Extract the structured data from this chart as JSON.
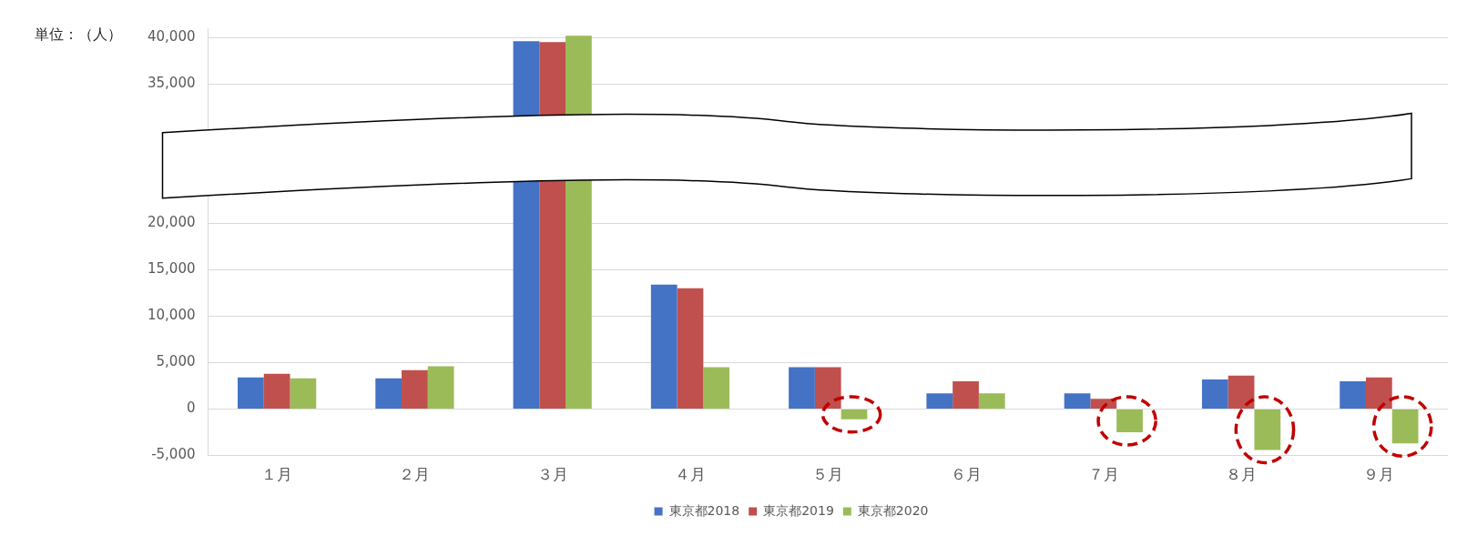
{
  "chart_data": {
    "type": "bar",
    "ylabel": "単位：（人）",
    "categories": [
      "１月",
      "２月",
      "３月",
      "４月",
      "５月",
      "６月",
      "７月",
      "８月",
      "９月"
    ],
    "series": [
      {
        "name": "東京都2018",
        "color": "#4472c4",
        "values": [
          3400,
          3300,
          39600,
          13400,
          4500,
          1700,
          1700,
          3200,
          3000
        ]
      },
      {
        "name": "東京都2019",
        "color": "#c0504d",
        "values": [
          3800,
          4200,
          39500,
          13000,
          4500,
          3000,
          1100,
          3600,
          3400
        ]
      },
      {
        "name": "東京都2020",
        "color": "#9bbb59",
        "values": [
          3300,
          4600,
          40200,
          4500,
          -1100,
          1700,
          -2500,
          -4400,
          -3700
        ]
      }
    ],
    "ylim": [
      -5000,
      41000
    ],
    "yticks": [
      {
        "value": -5000,
        "label": "-5,000"
      },
      0,
      {
        "value": 5000,
        "label": "5,000"
      },
      {
        "value": 10000,
        "label": "10,000"
      },
      {
        "value": 15000,
        "label": "15,000"
      },
      {
        "value": 20000,
        "label": "20,000"
      },
      {
        "value": 35000,
        "label": "35,000"
      },
      {
        "value": 40000,
        "label": "40,000"
      }
    ],
    "grid": "y",
    "legend": "bottom"
  }
}
